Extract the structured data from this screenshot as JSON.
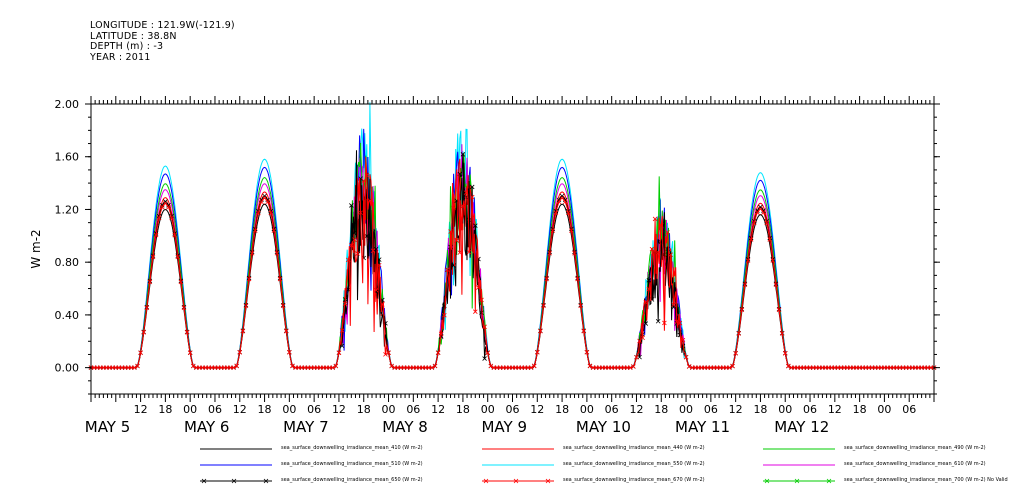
{
  "header": {
    "longitude": "LONGITUDE : 121.9W(-121.9)",
    "latitude": "LATITUDE : 38.8N",
    "depth": "DEPTH (m) : -3",
    "year": "YEAR : 2011"
  },
  "chart_data": {
    "type": "line",
    "title": "",
    "xlabel": "",
    "ylabel": "W m-2",
    "ylim": [
      -0.2,
      2.0
    ],
    "yticks": [
      0.0,
      0.4,
      0.8,
      1.2,
      1.6,
      2.0
    ],
    "ytick_labels": [
      "0.00",
      "0.40",
      "0.80",
      "1.20",
      "1.60",
      "2.00"
    ],
    "x_hour_labels": [
      "12",
      "18",
      "00",
      "06",
      "12",
      "18",
      "00",
      "06",
      "12",
      "18",
      "00",
      "06",
      "12",
      "18",
      "00",
      "06",
      "12",
      "18",
      "00",
      "06",
      "12",
      "18",
      "00",
      "06",
      "12",
      "18",
      "00",
      "06",
      "12",
      "18",
      "00",
      "06"
    ],
    "x_day_labels": [
      "MAY 5",
      "MAY 6",
      "MAY 7",
      "MAY 8",
      "MAY 9",
      "MAY 10",
      "MAY 11",
      "MAY 12"
    ],
    "x_range_hours": [
      0,
      204
    ],
    "grid": false,
    "legend_placement": "bottom",
    "days": [
      {
        "noon_hour": 18,
        "peak_base": 1.5,
        "cloudy": false
      },
      {
        "noon_hour": 42,
        "peak_base": 1.55,
        "cloudy": false
      },
      {
        "noon_hour": 66,
        "peak_base": 1.5,
        "cloudy": true
      },
      {
        "noon_hour": 90,
        "peak_base": 1.5,
        "cloudy": true
      },
      {
        "noon_hour": 114,
        "peak_base": 1.55,
        "cloudy": false
      },
      {
        "noon_hour": 138,
        "peak_base": 1.05,
        "cloudy": true
      },
      {
        "noon_hour": 162,
        "peak_base": 1.45,
        "cloudy": false
      }
    ],
    "series": [
      {
        "name": "sea_surface_downwelling_irradiance_mean_410 (W m-2)",
        "color": "#000000",
        "scale": 0.8,
        "marker": "none"
      },
      {
        "name": "sea_surface_downwelling_irradiance_mean_440 (W m-2)",
        "color": "#ff0000",
        "scale": 0.86,
        "marker": "none"
      },
      {
        "name": "sea_surface_downwelling_irradiance_mean_490 (W m-2)",
        "color": "#00cc00",
        "scale": 0.93,
        "marker": "none"
      },
      {
        "name": "sea_surface_downwelling_irradiance_mean_510 (W m-2)",
        "color": "#0000ff",
        "scale": 0.98,
        "marker": "none"
      },
      {
        "name": "sea_surface_downwelling_irradiance_mean_550 (W m-2)",
        "color": "#00e5ff",
        "scale": 1.02,
        "marker": "none"
      },
      {
        "name": "sea_surface_downwelling_irradiance_mean_610 (W m-2)",
        "color": "#e000e0",
        "scale": 0.9,
        "marker": "none"
      },
      {
        "name": "sea_surface_downwelling_irradiance_mean_650 (W m-2)",
        "color": "#000000",
        "scale": 0.84,
        "marker": "x"
      },
      {
        "name": "sea_surface_downwelling_irradiance_mean_670 (W m-2)",
        "color": "#ff0000",
        "scale": 0.83,
        "marker": "x"
      },
      {
        "name": "sea_surface_downwelling_irradiance_mean_700 (W m-2) No Valid Data",
        "color": "#00cc00",
        "scale": 0,
        "marker": "x",
        "no_data": true
      }
    ]
  }
}
